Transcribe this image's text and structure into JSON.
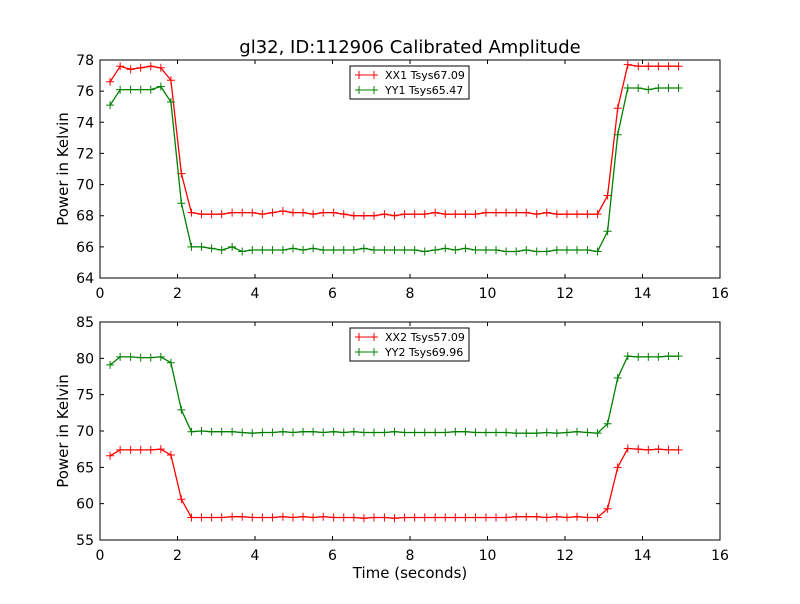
{
  "chart_data": [
    {
      "type": "line",
      "title": "gl32, ID:112906 Calibrated Amplitude",
      "xlabel": "",
      "ylabel": "Power in Kelvin",
      "xlim": [
        0,
        16
      ],
      "ylim": [
        64,
        78
      ],
      "xticks": [
        0,
        2,
        4,
        6,
        8,
        10,
        12,
        14,
        16
      ],
      "yticks": [
        64,
        66,
        68,
        70,
        72,
        74,
        76,
        78
      ],
      "legend_position": "top-center",
      "x": [
        0.26,
        0.52,
        0.79,
        1.05,
        1.31,
        1.57,
        1.83,
        2.1,
        2.36,
        2.62,
        2.88,
        3.14,
        3.41,
        3.67,
        3.93,
        4.19,
        4.45,
        4.72,
        4.98,
        5.24,
        5.5,
        5.76,
        6.03,
        6.29,
        6.55,
        6.81,
        7.07,
        7.34,
        7.6,
        7.86,
        8.12,
        8.38,
        8.65,
        8.91,
        9.17,
        9.43,
        9.69,
        9.96,
        10.22,
        10.48,
        10.74,
        11.0,
        11.27,
        11.53,
        11.79,
        12.05,
        12.31,
        12.58,
        12.84,
        13.1,
        13.36,
        13.62,
        13.89,
        14.15,
        14.41,
        14.67,
        14.93
      ],
      "series": [
        {
          "name": "XX1 Tsys67.09",
          "color": "#ff0000",
          "marker": "+",
          "values": [
            76.6,
            77.6,
            77.4,
            77.5,
            77.6,
            77.5,
            76.7,
            70.7,
            68.2,
            68.1,
            68.1,
            68.1,
            68.2,
            68.2,
            68.2,
            68.1,
            68.2,
            68.3,
            68.2,
            68.2,
            68.1,
            68.2,
            68.2,
            68.1,
            68.0,
            68.0,
            68.0,
            68.1,
            68.0,
            68.1,
            68.1,
            68.1,
            68.2,
            68.1,
            68.1,
            68.1,
            68.1,
            68.2,
            68.2,
            68.2,
            68.2,
            68.2,
            68.1,
            68.2,
            68.1,
            68.1,
            68.1,
            68.1,
            68.1,
            69.3,
            74.9,
            77.7,
            77.6,
            77.6,
            77.6,
            77.6,
            77.6
          ]
        },
        {
          "name": "YY1 Tsys65.47",
          "color": "#008000",
          "marker": "+",
          "values": [
            75.1,
            76.1,
            76.1,
            76.1,
            76.1,
            76.3,
            75.3,
            68.8,
            66.0,
            66.0,
            65.9,
            65.8,
            66.0,
            65.7,
            65.8,
            65.8,
            65.8,
            65.8,
            65.9,
            65.8,
            65.9,
            65.8,
            65.8,
            65.8,
            65.8,
            65.9,
            65.8,
            65.8,
            65.8,
            65.8,
            65.8,
            65.7,
            65.8,
            65.9,
            65.8,
            65.9,
            65.8,
            65.8,
            65.8,
            65.7,
            65.7,
            65.8,
            65.7,
            65.7,
            65.8,
            65.8,
            65.8,
            65.8,
            65.7,
            67.0,
            73.2,
            76.2,
            76.2,
            76.1,
            76.2,
            76.2,
            76.2
          ]
        }
      ]
    },
    {
      "type": "line",
      "title": "",
      "xlabel": "Time (seconds)",
      "ylabel": "Power in Kelvin",
      "xlim": [
        0,
        16
      ],
      "ylim": [
        55,
        85
      ],
      "xticks": [
        0,
        2,
        4,
        6,
        8,
        10,
        12,
        14,
        16
      ],
      "yticks": [
        55,
        60,
        65,
        70,
        75,
        80,
        85
      ],
      "legend_position": "top-center",
      "x": [
        0.26,
        0.52,
        0.79,
        1.05,
        1.31,
        1.57,
        1.83,
        2.1,
        2.36,
        2.62,
        2.88,
        3.14,
        3.41,
        3.67,
        3.93,
        4.19,
        4.45,
        4.72,
        4.98,
        5.24,
        5.5,
        5.76,
        6.03,
        6.29,
        6.55,
        6.81,
        7.07,
        7.34,
        7.6,
        7.86,
        8.12,
        8.38,
        8.65,
        8.91,
        9.17,
        9.43,
        9.69,
        9.96,
        10.22,
        10.48,
        10.74,
        11.0,
        11.27,
        11.53,
        11.79,
        12.05,
        12.31,
        12.58,
        12.84,
        13.1,
        13.36,
        13.62,
        13.89,
        14.15,
        14.41,
        14.67,
        14.93
      ],
      "series": [
        {
          "name": "XX2 Tsys57.09",
          "color": "#ff0000",
          "marker": "+",
          "values": [
            66.6,
            67.4,
            67.4,
            67.4,
            67.4,
            67.5,
            66.7,
            60.6,
            58.1,
            58.1,
            58.1,
            58.1,
            58.2,
            58.2,
            58.1,
            58.1,
            58.1,
            58.2,
            58.1,
            58.2,
            58.1,
            58.2,
            58.1,
            58.1,
            58.1,
            58.0,
            58.1,
            58.1,
            58.0,
            58.1,
            58.1,
            58.1,
            58.1,
            58.1,
            58.1,
            58.1,
            58.1,
            58.1,
            58.1,
            58.1,
            58.2,
            58.2,
            58.2,
            58.1,
            58.2,
            58.1,
            58.2,
            58.1,
            58.1,
            59.3,
            65.0,
            67.6,
            67.5,
            67.4,
            67.5,
            67.4,
            67.4
          ]
        },
        {
          "name": "YY2 Tsys69.96",
          "color": "#008000",
          "marker": "+",
          "values": [
            79.1,
            80.2,
            80.2,
            80.1,
            80.1,
            80.2,
            79.4,
            72.9,
            69.9,
            70.0,
            69.9,
            69.9,
            69.9,
            69.8,
            69.7,
            69.8,
            69.8,
            69.9,
            69.8,
            69.9,
            69.9,
            69.8,
            69.9,
            69.8,
            69.9,
            69.8,
            69.8,
            69.8,
            69.9,
            69.8,
            69.8,
            69.8,
            69.8,
            69.8,
            69.9,
            69.9,
            69.8,
            69.8,
            69.8,
            69.8,
            69.7,
            69.7,
            69.7,
            69.8,
            69.7,
            69.8,
            69.9,
            69.8,
            69.7,
            71.0,
            77.3,
            80.3,
            80.2,
            80.2,
            80.2,
            80.3,
            80.3
          ]
        }
      ]
    }
  ]
}
